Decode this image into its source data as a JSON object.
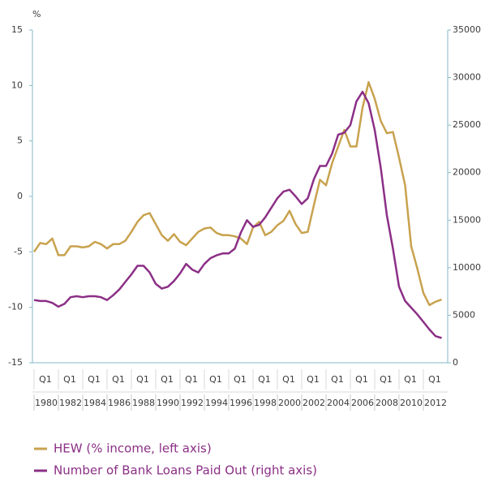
{
  "chart_data": {
    "type": "line",
    "y_label": "%",
    "x": [
      "1980 Q1",
      "1980 Q3",
      "1981 Q1",
      "1981 Q3",
      "1982 Q1",
      "1982 Q3",
      "1983 Q1",
      "1983 Q3",
      "1984 Q1",
      "1984 Q3",
      "1985 Q1",
      "1985 Q3",
      "1986 Q1",
      "1986 Q3",
      "1987 Q1",
      "1987 Q3",
      "1988 Q1",
      "1988 Q3",
      "1989 Q1",
      "1989 Q3",
      "1990 Q1",
      "1990 Q3",
      "1991 Q1",
      "1991 Q3",
      "1992 Q1",
      "1992 Q3",
      "1993 Q1",
      "1993 Q3",
      "1994 Q1",
      "1994 Q3",
      "1995 Q1",
      "1995 Q3",
      "1996 Q1",
      "1996 Q3",
      "1997 Q1",
      "1997 Q3",
      "1998 Q1",
      "1998 Q3",
      "1999 Q1",
      "1999 Q3",
      "2000 Q1",
      "2000 Q3",
      "2001 Q1",
      "2001 Q3",
      "2002 Q1",
      "2002 Q3",
      "2003 Q1",
      "2003 Q3",
      "2004 Q1",
      "2004 Q3",
      "2005 Q1",
      "2005 Q3",
      "2006 Q1",
      "2006 Q3",
      "2007 Q1",
      "2007 Q3",
      "2008 Q1",
      "2008 Q3",
      "2009 Q1",
      "2009 Q3",
      "2010 Q1",
      "2010 Q3",
      "2011 Q1",
      "2011 Q3",
      "2012 Q1",
      "2012 Q3",
      "2013 Q1",
      "2013 Q3"
    ],
    "series": [
      {
        "name": "HEW (% income, left axis)",
        "color": "#c8a24e",
        "axis": "y",
        "values": [
          -5.0,
          -4.2,
          -4.3,
          -3.8,
          -5.3,
          -5.3,
          -4.5,
          -4.5,
          -4.6,
          -4.5,
          -4.1,
          -4.3,
          -4.7,
          -4.3,
          -4.3,
          -4.0,
          -3.2,
          -2.3,
          -1.7,
          -1.5,
          -2.5,
          -3.5,
          -4.0,
          -3.4,
          -4.1,
          -4.4,
          -3.8,
          -3.2,
          -2.9,
          -2.8,
          -3.3,
          -3.5,
          -3.5,
          -3.6,
          -3.8,
          -4.3,
          -2.8,
          -2.3,
          -3.5,
          -3.2,
          -2.6,
          -2.2,
          -1.3,
          -2.5,
          -3.3,
          -3.2,
          -0.8,
          1.5,
          1.0,
          3.0,
          4.5,
          6.0,
          4.5,
          4.5,
          8.0,
          10.3,
          8.8,
          6.8,
          5.7,
          5.8,
          3.5,
          1.0,
          -4.5,
          -6.5,
          -8.7,
          -9.8,
          -9.5,
          -9.3
        ]
      },
      {
        "name": "Number of Bank Loans Paid Out (right axis)",
        "color": "#8b2f86",
        "axis": "y2",
        "values": [
          6600,
          6500,
          6500,
          6300,
          5900,
          6200,
          6900,
          7000,
          6900,
          7000,
          7000,
          6900,
          6600,
          7100,
          7700,
          8500,
          9300,
          10200,
          10200,
          9500,
          8300,
          7800,
          8000,
          8600,
          9400,
          10400,
          9800,
          9500,
          10400,
          11000,
          11300,
          11500,
          11500,
          12000,
          13700,
          15000,
          14300,
          14500,
          15300,
          16300,
          17300,
          18000,
          18200,
          17500,
          16700,
          17300,
          19300,
          20700,
          20700,
          22000,
          24000,
          24200,
          25000,
          27500,
          28500,
          27300,
          24500,
          20500,
          15500,
          12000,
          8000,
          6500,
          5800,
          5100,
          4300,
          3500,
          2800,
          2600
        ]
      }
    ],
    "ylim": [
      -15,
      15
    ],
    "yticks": [
      -15,
      -10,
      -5,
      0,
      5,
      10,
      15
    ],
    "y2lim": [
      0,
      35000
    ],
    "y2ticks": [
      0,
      5000,
      10000,
      15000,
      20000,
      25000,
      30000,
      35000
    ],
    "xticks": [
      {
        "value": "1980 Q1",
        "label": "Q1"
      },
      {
        "value": "1982 Q1",
        "label": "Q1"
      },
      {
        "value": "1984 Q1",
        "label": "Q1"
      },
      {
        "value": "1986 Q1",
        "label": "Q1"
      },
      {
        "value": "1988 Q1",
        "label": "Q1"
      },
      {
        "value": "1990 Q1",
        "label": "Q1"
      },
      {
        "value": "1992 Q1",
        "label": "Q1"
      },
      {
        "value": "1994 Q1",
        "label": "Q1"
      },
      {
        "value": "1996 Q1",
        "label": "Q1"
      },
      {
        "value": "1998 Q1",
        "label": "Q1"
      },
      {
        "value": "2000 Q1",
        "label": "Q1"
      },
      {
        "value": "2002 Q1",
        "label": "Q1"
      },
      {
        "value": "2004 Q1",
        "label": "Q1"
      },
      {
        "value": "2006 Q1",
        "label": "Q1"
      },
      {
        "value": "2008 Q1",
        "label": "Q1"
      },
      {
        "value": "2010 Q1",
        "label": "Q1"
      },
      {
        "value": "2012 Q1",
        "label": "Q1"
      }
    ],
    "xticks_year": [
      {
        "value": "1980 Q1",
        "label": "1980"
      },
      {
        "value": "1982 Q1",
        "label": "1982"
      },
      {
        "value": "1984 Q1",
        "label": "1984"
      },
      {
        "value": "1986 Q1",
        "label": "1986"
      },
      {
        "value": "1988 Q1",
        "label": "1988"
      },
      {
        "value": "1990 Q1",
        "label": "1990"
      },
      {
        "value": "1992 Q1",
        "label": "1992"
      },
      {
        "value": "1994 Q1",
        "label": "1994"
      },
      {
        "value": "1996 Q1",
        "label": "1996"
      },
      {
        "value": "1998 Q1",
        "label": "1998"
      },
      {
        "value": "2000 Q1",
        "label": "2000"
      },
      {
        "value": "2002 Q1",
        "label": "2002"
      },
      {
        "value": "2004 Q1",
        "label": "2004"
      },
      {
        "value": "2006 Q1",
        "label": "2006"
      },
      {
        "value": "2008 Q1",
        "label": "2008"
      },
      {
        "value": "2010 Q1",
        "label": "2010"
      },
      {
        "value": "2012 Q1",
        "label": "2012"
      }
    ],
    "grid": false,
    "legend": "bottom-left"
  }
}
